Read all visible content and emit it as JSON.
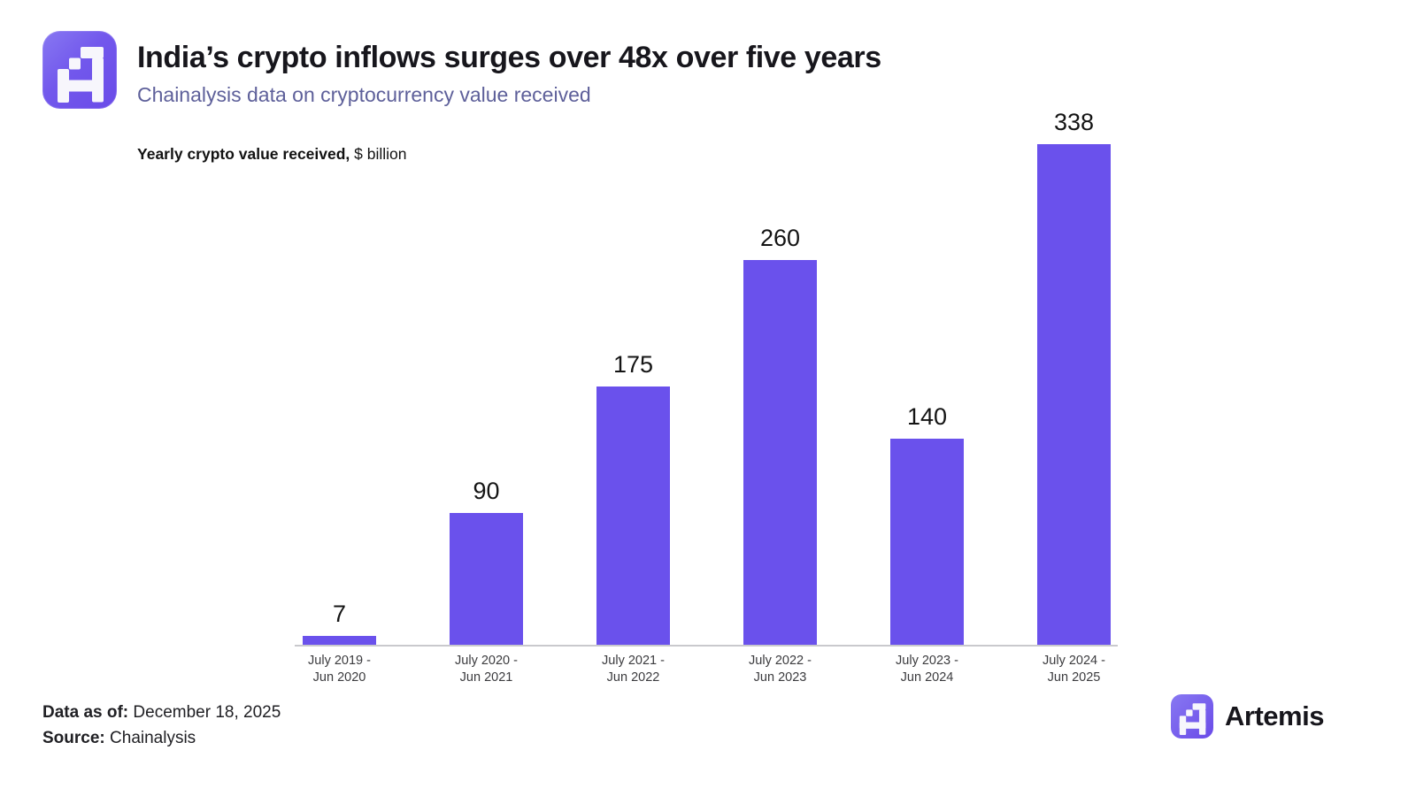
{
  "header": {
    "title": "India’s crypto inflows surges over 48x over five years",
    "subtitle": "Chainalysis data on cryptocurrency value received"
  },
  "legend": {
    "bold_part": "Yearly crypto value received,",
    "regular_part": " $ billion"
  },
  "chart_data": {
    "type": "bar",
    "title": "Yearly crypto value received, $ billion",
    "categories": [
      {
        "line1": "July 2019 -",
        "line2": "Jun 2020"
      },
      {
        "line1": "July 2020 -",
        "line2": "Jun 2021"
      },
      {
        "line1": "July 2021 -",
        "line2": "Jun 2022"
      },
      {
        "line1": "July 2022 -",
        "line2": "Jun 2023"
      },
      {
        "line1": "July 2023 -",
        "line2": "Jun 2024"
      },
      {
        "line1": "July 2024 -",
        "line2": "Jun 2025"
      }
    ],
    "values": [
      7,
      90,
      175,
      260,
      140,
      338
    ],
    "xlabel": "",
    "ylabel": "$ billion",
    "ylim": [
      0,
      350
    ],
    "grid": false,
    "legend_position": "none",
    "value_labels": true,
    "bar_color": "#6A51EC",
    "axis_color": "#C9C9CD"
  },
  "footer": {
    "data_as_of_label": "Data as of:",
    "data_as_of_value": " December 18, 2025",
    "source_label": "Source:",
    "source_value": " Chainalysis"
  },
  "branding": {
    "name": "Artemis",
    "logo_icon": "artemis-pixel-a-icon"
  },
  "colors": {
    "accent_purple": "#6A51EC",
    "logo_gradient_start": "#8878F2",
    "logo_gradient_end": "#6A4BE8",
    "subtitle": "#5E609A",
    "title_text": "#17161C"
  }
}
